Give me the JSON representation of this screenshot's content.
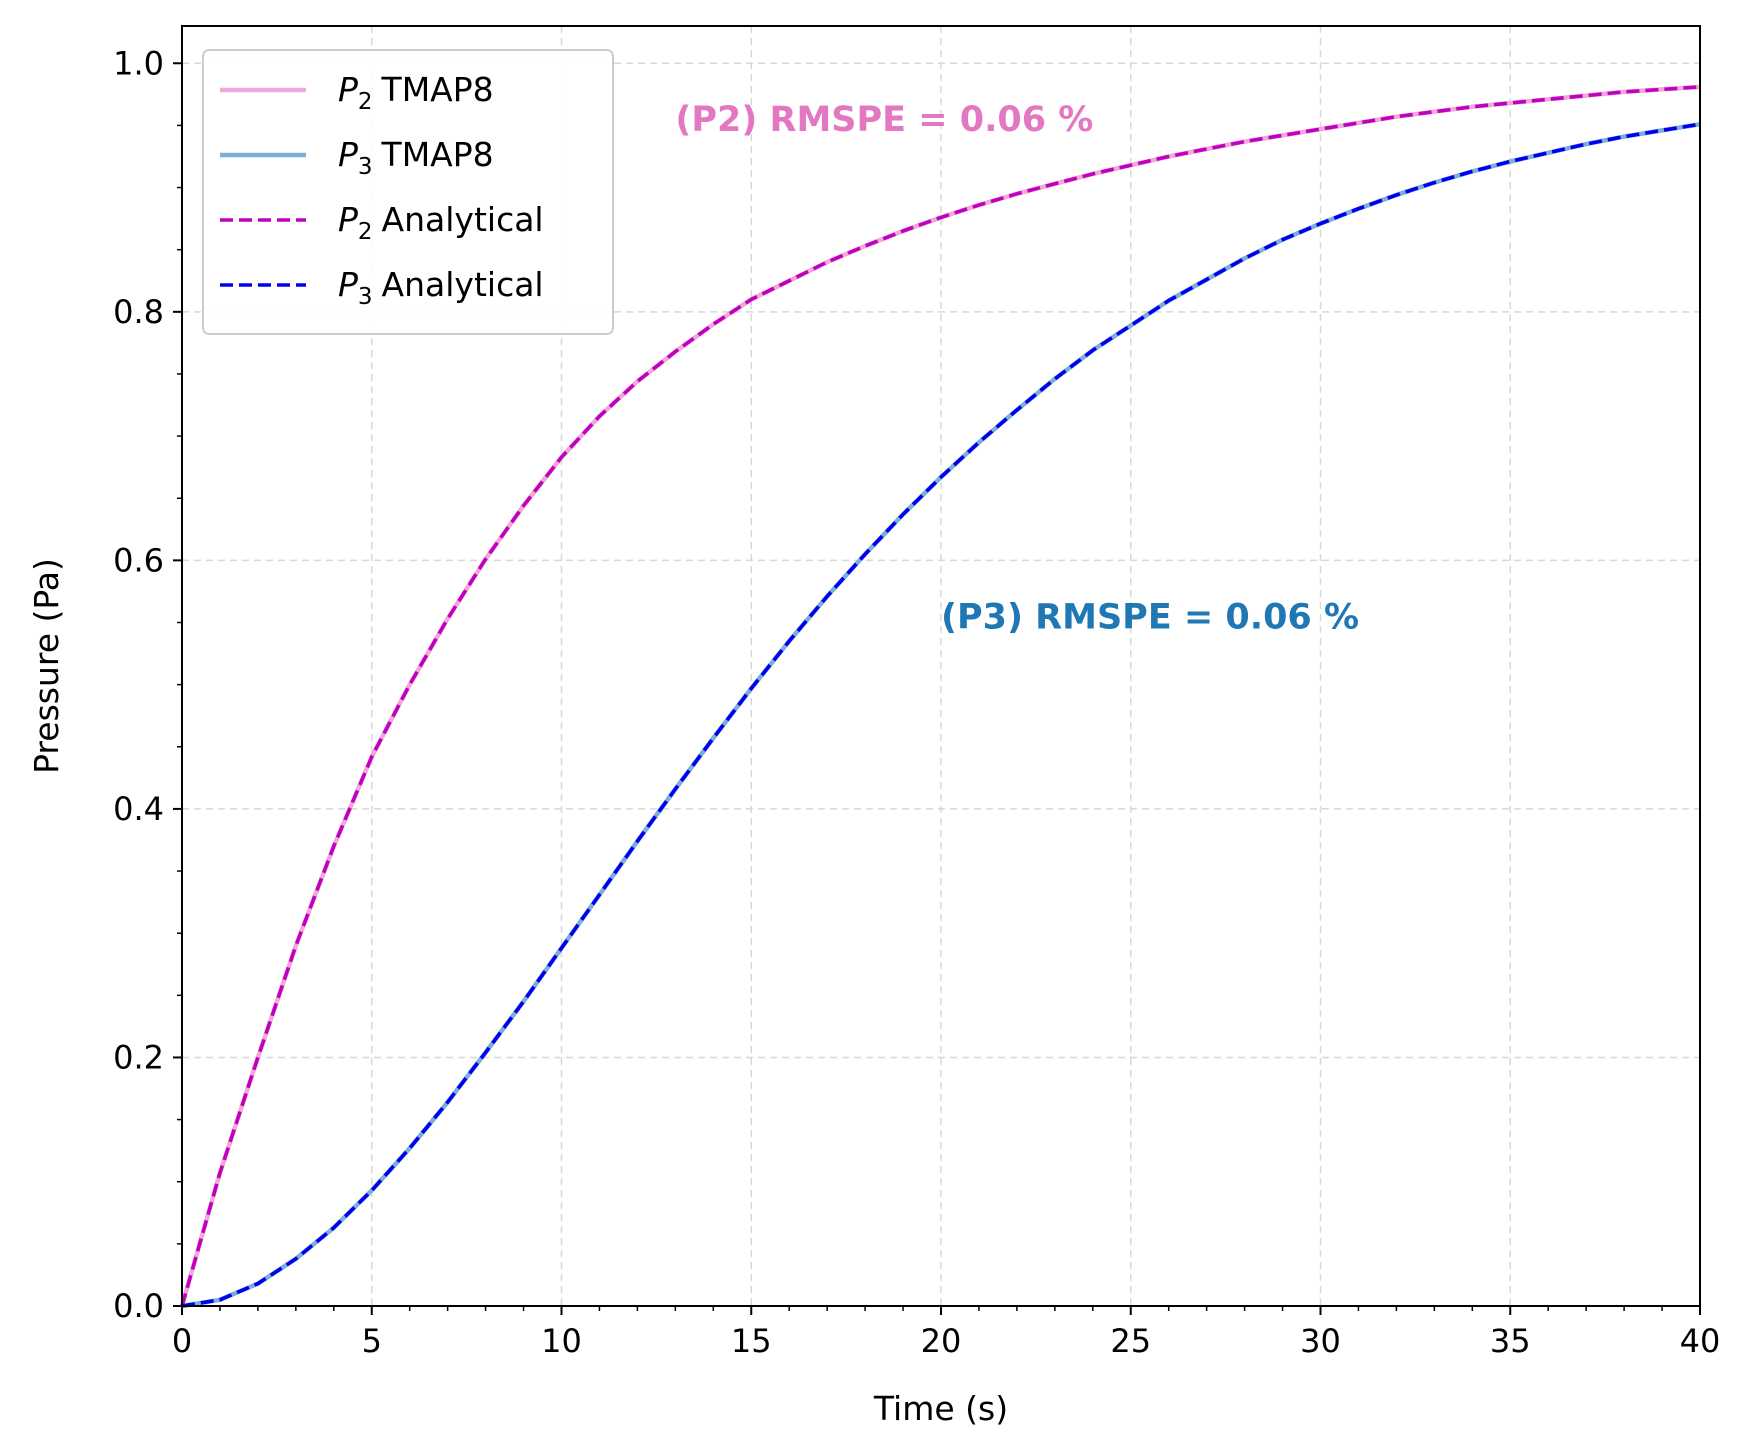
{
  "chart_data": {
    "type": "line",
    "xlabel": "Time (s)",
    "ylabel": "Pressure (Pa)",
    "xlim": [
      0,
      40
    ],
    "ylim": [
      0,
      1.03
    ],
    "xticks": [
      "0",
      "5",
      "10",
      "15",
      "20",
      "25",
      "30",
      "35",
      "40"
    ],
    "yticks": [
      "0.0",
      "0.2",
      "0.4",
      "0.6",
      "0.8",
      "1.0"
    ],
    "grid": true,
    "legend_position": "top-left",
    "series": [
      {
        "name": "P2 TMAP8",
        "legend_symbol": "P",
        "legend_subscript": "2",
        "legend_suffix": "TMAP8",
        "style": "solid",
        "color": "#f0a8d8",
        "x": [
          0,
          1,
          2,
          3,
          4,
          5,
          6,
          7,
          8,
          9,
          10,
          11,
          12,
          13,
          14,
          15,
          16,
          17,
          18,
          19,
          20,
          21,
          22,
          23,
          24,
          25,
          26,
          27,
          28,
          29,
          30,
          31,
          32,
          33,
          34,
          35,
          36,
          37,
          38,
          39,
          40
        ],
        "values": [
          0,
          0.107,
          0.2,
          0.29,
          0.37,
          0.442,
          0.5,
          0.553,
          0.601,
          0.644,
          0.683,
          0.716,
          0.744,
          0.768,
          0.79,
          0.81,
          0.825,
          0.84,
          0.853,
          0.865,
          0.876,
          0.886,
          0.895,
          0.903,
          0.911,
          0.918,
          0.925,
          0.931,
          0.937,
          0.942,
          0.947,
          0.952,
          0.957,
          0.961,
          0.965,
          0.968,
          0.971,
          0.974,
          0.977,
          0.979,
          0.981
        ]
      },
      {
        "name": "P3 TMAP8",
        "legend_symbol": "P",
        "legend_subscript": "3",
        "legend_suffix": "TMAP8",
        "style": "solid",
        "color": "#7bafd8",
        "x": [
          0,
          1,
          2,
          3,
          4,
          5,
          6,
          7,
          8,
          9,
          10,
          11,
          12,
          13,
          14,
          15,
          16,
          17,
          18,
          19,
          20,
          21,
          22,
          23,
          24,
          25,
          26,
          27,
          28,
          29,
          30,
          31,
          32,
          33,
          34,
          35,
          36,
          37,
          38,
          39,
          40
        ],
        "values": [
          0,
          0.005,
          0.018,
          0.038,
          0.063,
          0.093,
          0.127,
          0.164,
          0.204,
          0.245,
          0.288,
          0.331,
          0.374,
          0.416,
          0.457,
          0.497,
          0.535,
          0.571,
          0.605,
          0.637,
          0.667,
          0.695,
          0.721,
          0.746,
          0.769,
          0.789,
          0.809,
          0.826,
          0.843,
          0.858,
          0.871,
          0.883,
          0.894,
          0.904,
          0.913,
          0.921,
          0.928,
          0.935,
          0.941,
          0.946,
          0.951
        ]
      },
      {
        "name": "P2 Analytical",
        "legend_symbol": "P",
        "legend_subscript": "2",
        "legend_suffix": "Analytical",
        "style": "dashed",
        "color": "#c000c0",
        "x": [
          0,
          1,
          2,
          3,
          4,
          5,
          6,
          7,
          8,
          9,
          10,
          11,
          12,
          13,
          14,
          15,
          16,
          17,
          18,
          19,
          20,
          21,
          22,
          23,
          24,
          25,
          26,
          27,
          28,
          29,
          30,
          31,
          32,
          33,
          34,
          35,
          36,
          37,
          38,
          39,
          40
        ],
        "values": [
          0,
          0.107,
          0.2,
          0.29,
          0.37,
          0.442,
          0.5,
          0.553,
          0.601,
          0.644,
          0.683,
          0.716,
          0.744,
          0.768,
          0.79,
          0.81,
          0.825,
          0.84,
          0.853,
          0.865,
          0.876,
          0.886,
          0.895,
          0.903,
          0.911,
          0.918,
          0.925,
          0.931,
          0.937,
          0.942,
          0.947,
          0.952,
          0.957,
          0.961,
          0.965,
          0.968,
          0.971,
          0.974,
          0.977,
          0.979,
          0.981
        ]
      },
      {
        "name": "P3 Analytical",
        "legend_symbol": "P",
        "legend_subscript": "3",
        "legend_suffix": "Analytical",
        "style": "dashed",
        "color": "#0000ee",
        "x": [
          0,
          1,
          2,
          3,
          4,
          5,
          6,
          7,
          8,
          9,
          10,
          11,
          12,
          13,
          14,
          15,
          16,
          17,
          18,
          19,
          20,
          21,
          22,
          23,
          24,
          25,
          26,
          27,
          28,
          29,
          30,
          31,
          32,
          33,
          34,
          35,
          36,
          37,
          38,
          39,
          40
        ],
        "values": [
          0,
          0.005,
          0.018,
          0.038,
          0.063,
          0.093,
          0.127,
          0.164,
          0.204,
          0.245,
          0.288,
          0.331,
          0.374,
          0.416,
          0.457,
          0.497,
          0.535,
          0.571,
          0.605,
          0.637,
          0.667,
          0.695,
          0.721,
          0.746,
          0.769,
          0.789,
          0.809,
          0.826,
          0.843,
          0.858,
          0.871,
          0.883,
          0.894,
          0.904,
          0.913,
          0.921,
          0.928,
          0.935,
          0.941,
          0.946,
          0.951
        ]
      }
    ],
    "annotations": [
      {
        "text": "(P2) RMSPE = 0.06 %",
        "color": "#e377c2",
        "x": 13,
        "y": 0.955
      },
      {
        "text": "(P3) RMSPE = 0.06 %",
        "color": "#1f77b4",
        "x": 20,
        "y": 0.555
      }
    ]
  }
}
